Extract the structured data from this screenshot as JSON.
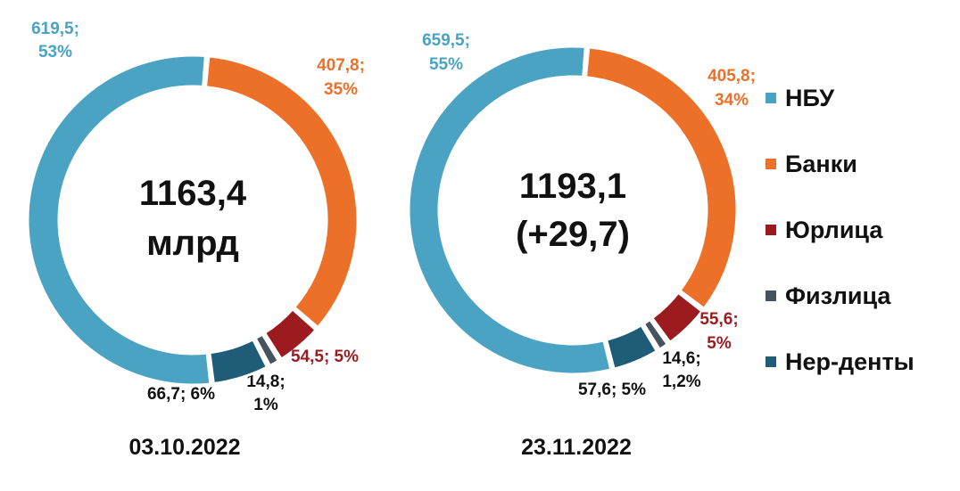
{
  "legend": {
    "items": [
      {
        "label": "НБУ",
        "color": "#4ba3c3"
      },
      {
        "label": "Банки",
        "color": "#ed7028"
      },
      {
        "label": "Юрлица",
        "color": "#9b1b1f"
      },
      {
        "label": "Физлица",
        "color": "#46525c"
      },
      {
        "label": "Нер-денты",
        "color": "#1f5c77"
      }
    ]
  },
  "chart_data": [
    {
      "type": "pie",
      "date": "03.10.2022",
      "center_lines": [
        "1163,4",
        "млрд"
      ],
      "series": [
        {
          "name": "НБУ",
          "value": 619.5,
          "label": [
            "619,5;",
            "53%"
          ]
        },
        {
          "name": "Банки",
          "value": 407.8,
          "label": [
            "407,8;",
            "35%"
          ]
        },
        {
          "name": "Юрлица",
          "value": 54.5,
          "label": [
            "54,5; 5%"
          ]
        },
        {
          "name": "Физлица",
          "value": 14.8,
          "label": [
            "14,8;",
            "1%"
          ]
        },
        {
          "name": "Нер-денты",
          "value": 66.7,
          "label": [
            "66,7; 6%"
          ]
        }
      ]
    },
    {
      "type": "pie",
      "date": "23.11.2022",
      "center_lines": [
        "1193,1",
        "(+29,7)"
      ],
      "series": [
        {
          "name": "НБУ",
          "value": 659.5,
          "label": [
            "659,5;",
            "55%"
          ]
        },
        {
          "name": "Банки",
          "value": 405.8,
          "label": [
            "405,8;",
            "34%"
          ]
        },
        {
          "name": "Юрлица",
          "value": 55.6,
          "label": [
            "55,6;",
            "5%"
          ]
        },
        {
          "name": "Физлица",
          "value": 14.6,
          "label": [
            "14,6;",
            "1,2%"
          ]
        },
        {
          "name": "Нер-денты",
          "value": 57.6,
          "label": [
            "57,6; 5%"
          ]
        }
      ]
    }
  ]
}
